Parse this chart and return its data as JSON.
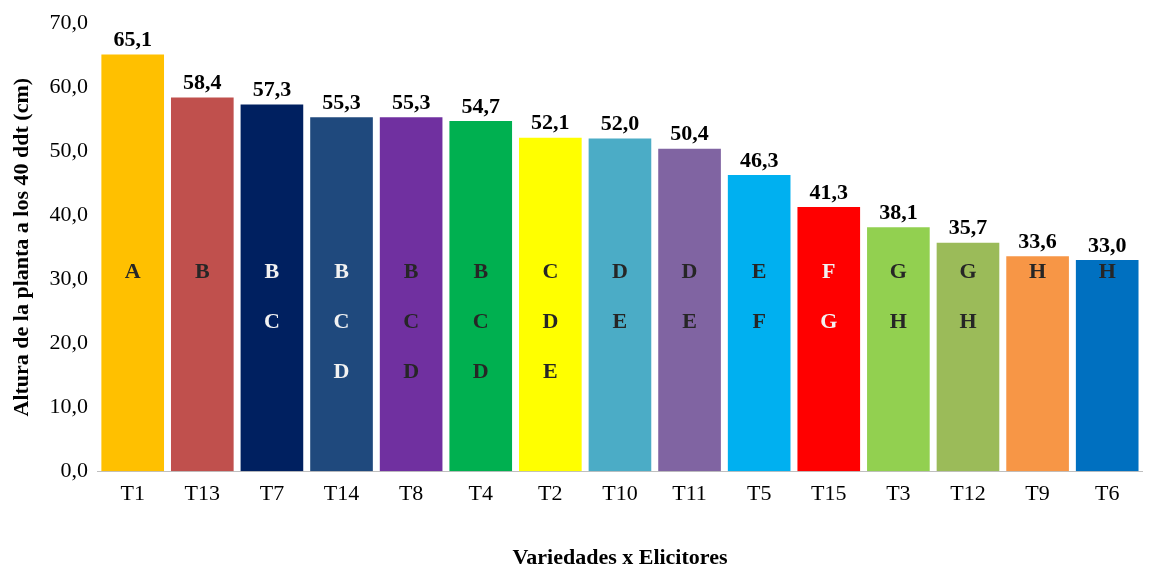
{
  "chart_data": {
    "type": "bar",
    "xlabel": "Variedades x Elicitores",
    "ylabel": "Altura de la planta a los 40 ddt (cm)",
    "categories": [
      "T1",
      "T13",
      "T7",
      "T14",
      "T8",
      "T4",
      "T2",
      "T10",
      "T11",
      "T5",
      "T15",
      "T3",
      "T12",
      "T9",
      "T6"
    ],
    "values": [
      65.1,
      58.4,
      57.3,
      55.3,
      55.3,
      54.7,
      52.1,
      52.0,
      50.4,
      46.3,
      41.3,
      38.1,
      35.7,
      33.6,
      33.0
    ],
    "colors": [
      "#ffc000",
      "#c0504d",
      "#002060",
      "#1f497d",
      "#7030a0",
      "#00b050",
      "#ffff00",
      "#4bacc6",
      "#8064a2",
      "#00b0f0",
      "#ff0000",
      "#92d050",
      "#9bbb59",
      "#f79646",
      "#0070c0"
    ],
    "value_labels": [
      "65,1",
      "58,4",
      "57,3",
      "55,3",
      "55,3",
      "54,7",
      "52,1",
      "52,0",
      "50,4",
      "46,3",
      "41,3",
      "38,1",
      "35,7",
      "33,6",
      "33,0"
    ],
    "ylim": [
      0,
      70
    ],
    "yticks": [
      {
        "value": 0,
        "label": "0,0"
      },
      {
        "value": 10,
        "label": "10,0"
      },
      {
        "value": 20,
        "label": "20,0"
      },
      {
        "value": 30,
        "label": "30,0"
      },
      {
        "value": 40,
        "label": "40,0"
      },
      {
        "value": 50,
        "label": "50,0"
      },
      {
        "value": 60,
        "label": "60,0"
      },
      {
        "value": 70,
        "label": "70,0"
      }
    ],
    "grid": false,
    "legend": false,
    "annotations": [
      "A",
      "B",
      "B\nC",
      "B\nC\nD",
      "B\nC\nD",
      "B\nC\nD",
      "C\nD\nE",
      "D\nE",
      "D\nE",
      "E\nF",
      "F\nG",
      "G\nH",
      "G\nH",
      "H",
      "H"
    ]
  }
}
